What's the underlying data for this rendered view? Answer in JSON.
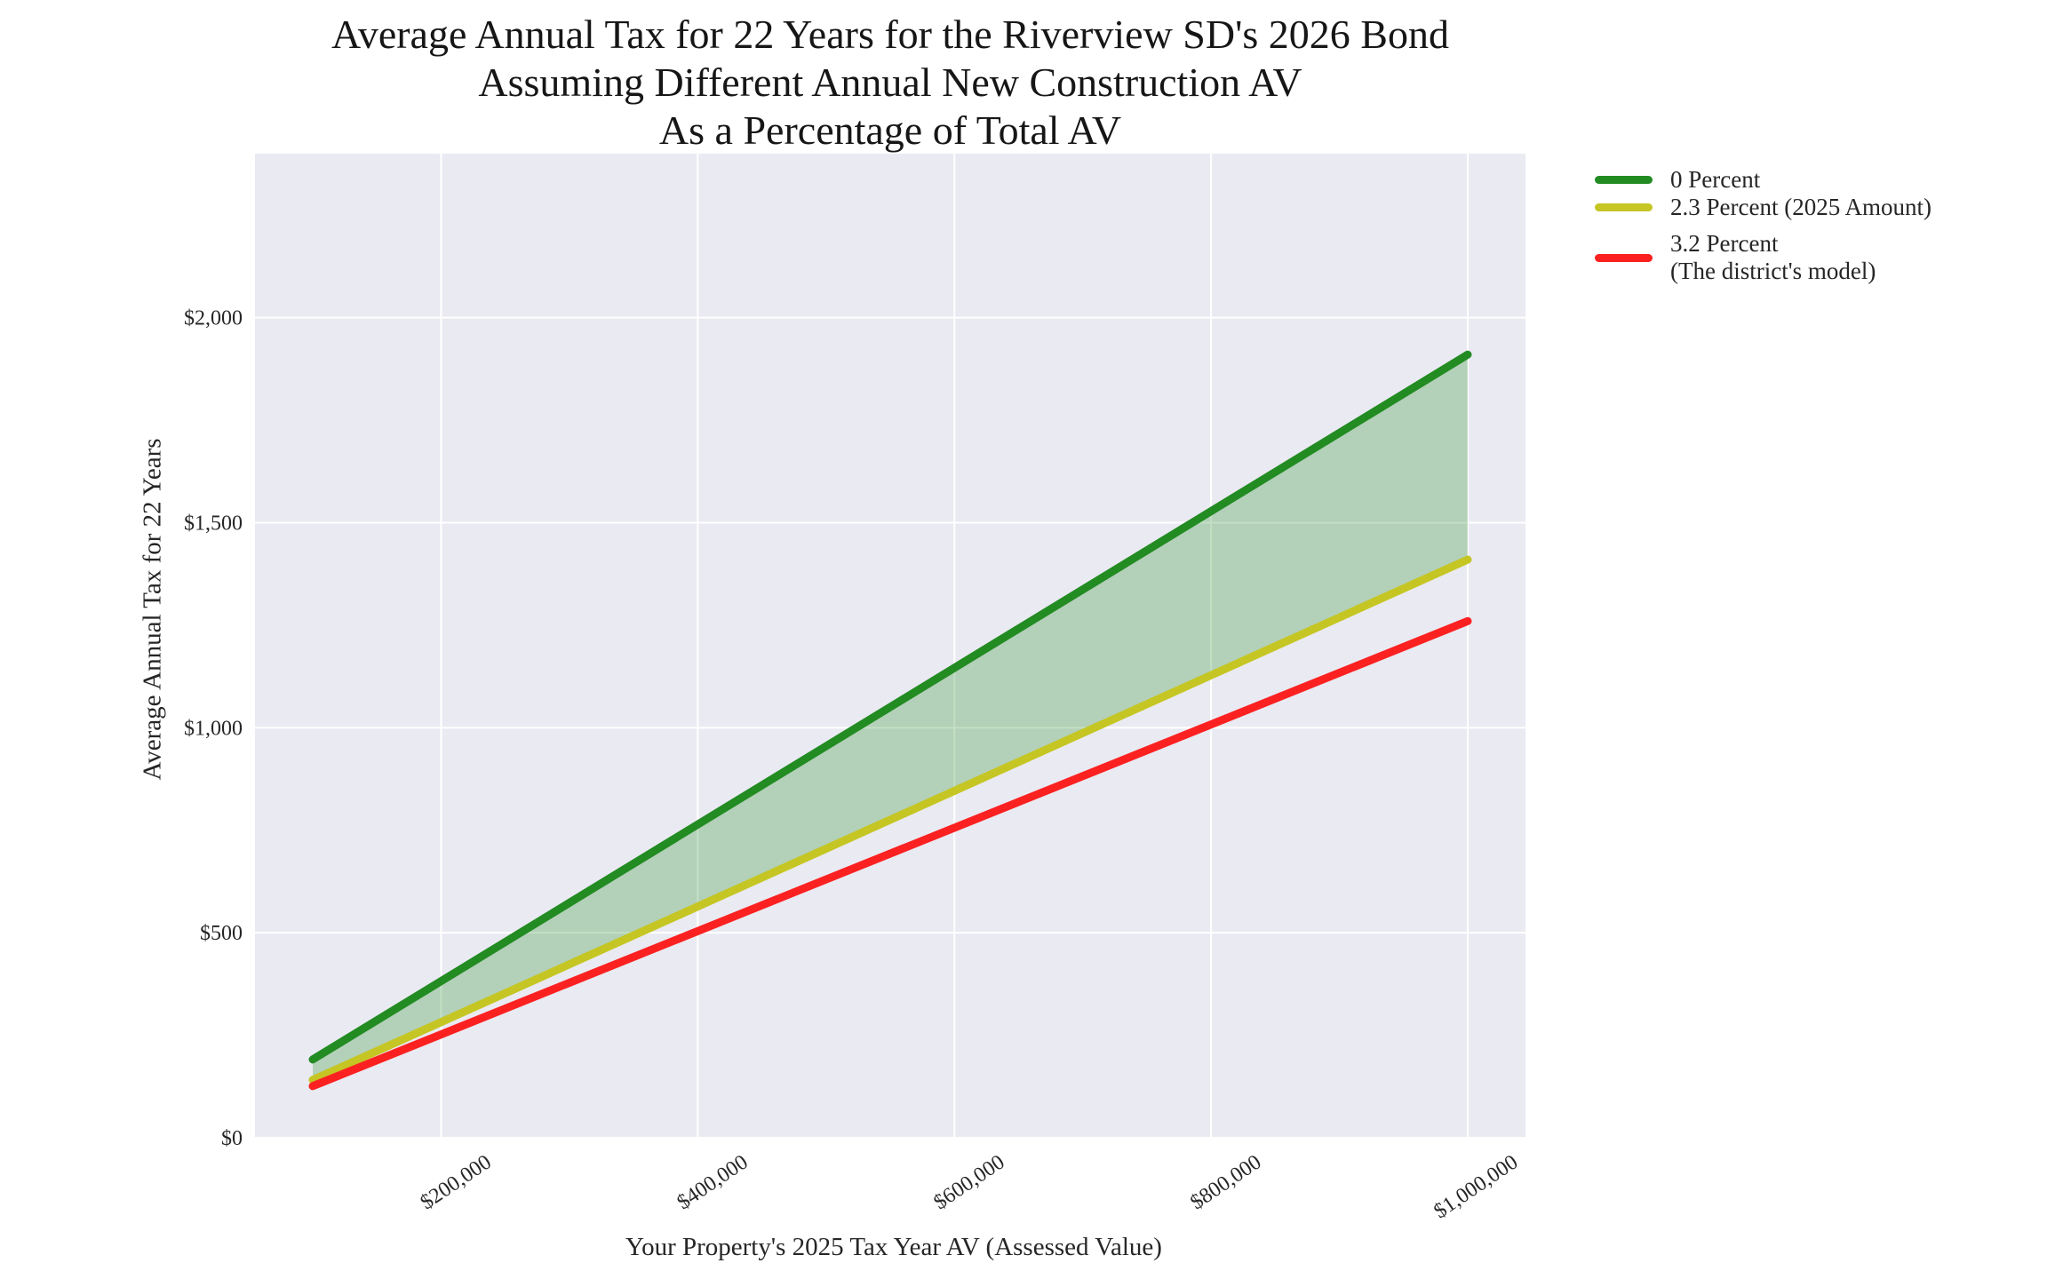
{
  "chart_data": {
    "type": "line",
    "title_lines": [
      "Average Annual Tax for 22 Years for the Riverview SD's 2026 Bond",
      "Assuming Different Annual New Construction AV",
      "As a Percentage of Total AV"
    ],
    "xlabel": "Your Property's 2025 Tax Year AV (Assessed Value)",
    "ylabel": "Average Annual Tax for 22 Years",
    "xlim": [
      55000,
      1045000
    ],
    "ylim": [
      0,
      2400
    ],
    "grid": true,
    "x_ticks": [
      {
        "value": 200000,
        "label": "$200,000"
      },
      {
        "value": 400000,
        "label": "$400,000"
      },
      {
        "value": 600000,
        "label": "$600,000"
      },
      {
        "value": 800000,
        "label": "$800,000"
      },
      {
        "value": 1000000,
        "label": "$1,000,000"
      }
    ],
    "y_ticks": [
      {
        "value": 0,
        "label": "$0"
      },
      {
        "value": 500,
        "label": "$500"
      },
      {
        "value": 1000,
        "label": "$1,000"
      },
      {
        "value": 1500,
        "label": "$1,500"
      },
      {
        "value": 2000,
        "label": "$2,000"
      }
    ],
    "series": [
      {
        "name": "0 Percent",
        "color": "#228b22",
        "x": [
          100000,
          1000000
        ],
        "y": [
          191,
          1910
        ]
      },
      {
        "name": "2.3 Percent (2025 Amount)",
        "color": "#c5c623",
        "x": [
          100000,
          1000000
        ],
        "y": [
          141,
          1410
        ]
      },
      {
        "name": "3.2 Percent (The district's model)",
        "color": "#fb2121",
        "x": [
          100000,
          1000000
        ],
        "y": [
          126,
          1260
        ]
      }
    ],
    "band_between": [
      "0 Percent",
      "2.3 Percent (2025 Amount)"
    ],
    "band_color": "#228b22",
    "band_opacity": 0.27,
    "legend_position": "outside upper right"
  },
  "legend": {
    "items": [
      {
        "lines": [
          "0 Percent",
          ""
        ],
        "color": "#228b22"
      },
      {
        "lines": [
          "2.3 Percent (2025 Amount)",
          ""
        ],
        "color": "#c5c623"
      },
      {
        "lines": [
          "3.2 Percent",
          "(The district's model)"
        ],
        "color": "#fb2121"
      }
    ]
  },
  "colors": {
    "plot_bg": "#eaeaf2",
    "gridline": "#ffffff",
    "text": "#262626",
    "title_text": "#161616"
  }
}
